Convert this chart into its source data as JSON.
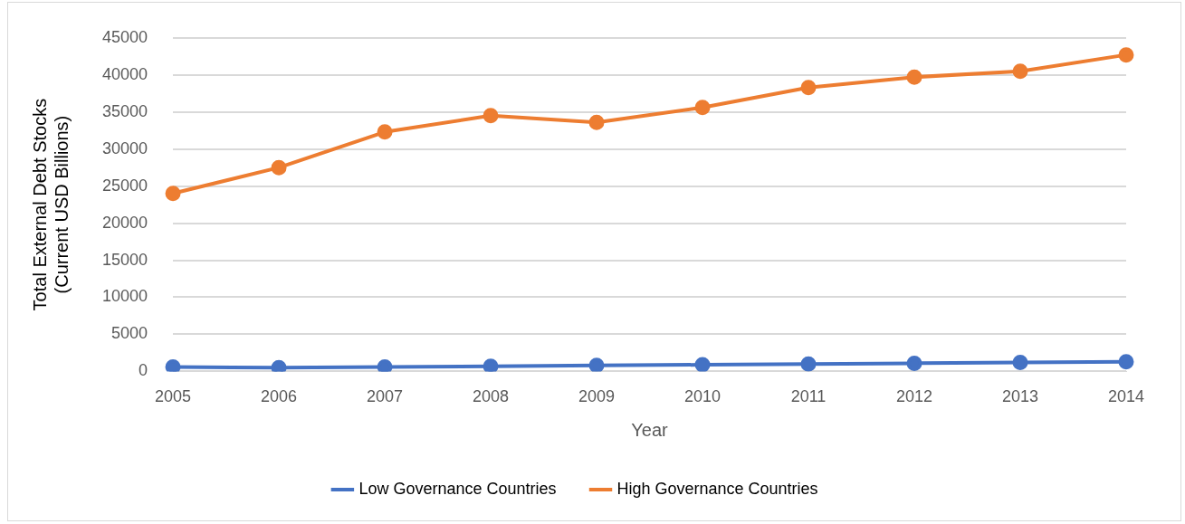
{
  "chart_data": {
    "type": "line",
    "xlabel": "Year",
    "ylabel": "Total External Debt Stocks\n(Current USD Billions)",
    "categories": [
      "2005",
      "2006",
      "2007",
      "2008",
      "2009",
      "2010",
      "2011",
      "2012",
      "2013",
      "2014"
    ],
    "series": [
      {
        "name": "Low Governance Countries",
        "color": "#4472c4",
        "values": [
          600,
          500,
          600,
          700,
          800,
          900,
          1000,
          1100,
          1200,
          1300
        ]
      },
      {
        "name": "High Governance Countries",
        "color": "#ed7d31",
        "values": [
          24000,
          27500,
          32300,
          34500,
          33600,
          35600,
          38300,
          39700,
          40500,
          42700
        ]
      }
    ],
    "ylim": [
      0,
      45000
    ],
    "yticks": [
      0,
      5000,
      10000,
      15000,
      20000,
      25000,
      30000,
      35000,
      40000,
      45000
    ],
    "grid": "y",
    "legend": "bottom",
    "marker": "circle",
    "line_style": "solid"
  }
}
